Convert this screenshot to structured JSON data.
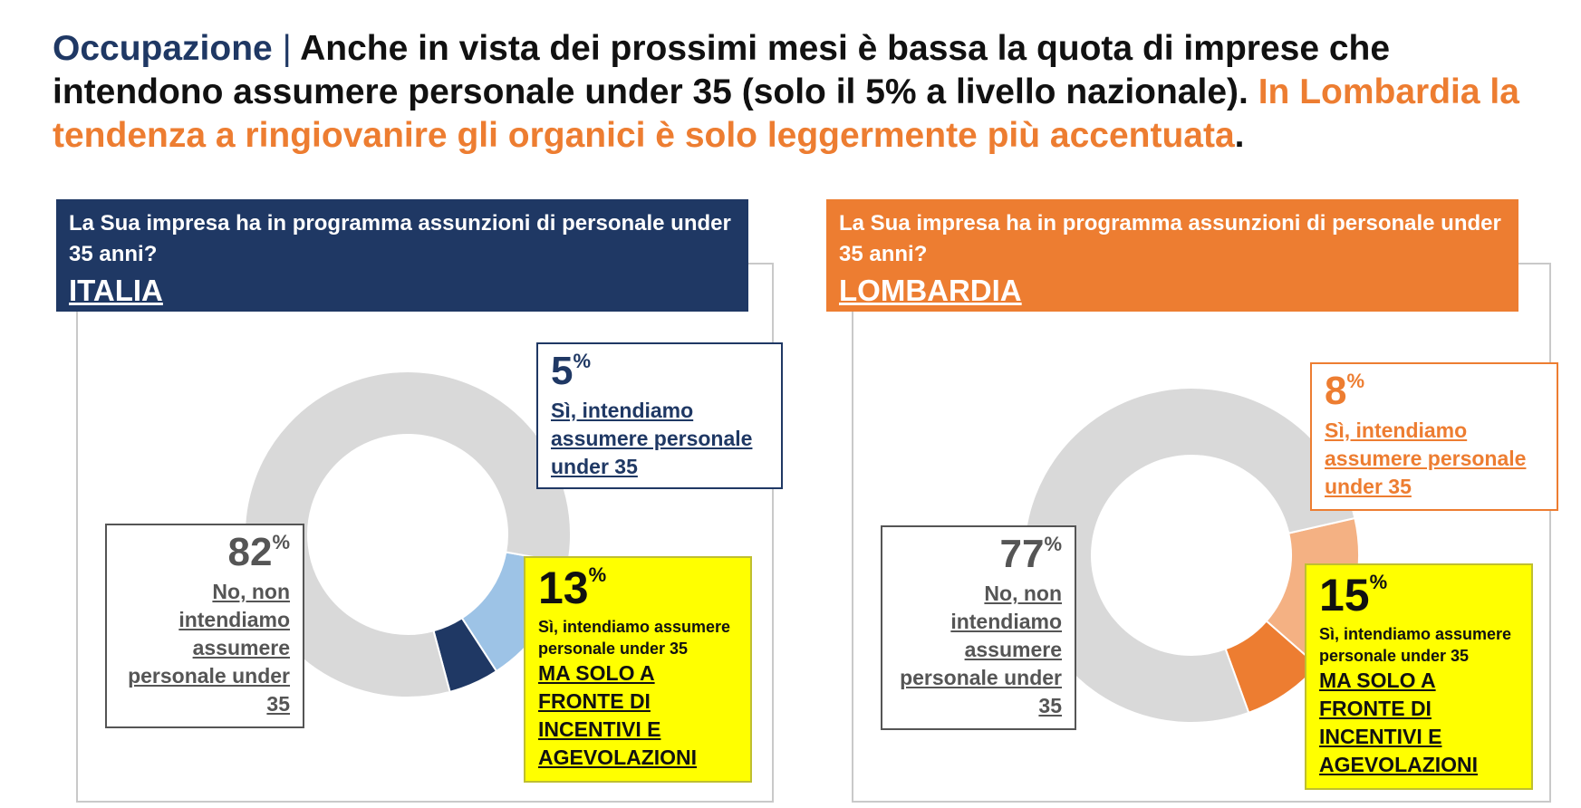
{
  "title": {
    "section": "Occupazione",
    "separator": "|",
    "main": "Anche in vista dei prossimi mesi è bassa la quota di imprese che intendono assumere personale under 35 (solo il 5% a livello nazionale).",
    "highlight": "In Lombardia la tendenza a ringiovanire gli organici è solo leggermente più accentuata",
    "end": "."
  },
  "colors": {
    "navy": "#1F3864",
    "orange": "#ED7D31",
    "light_blue": "#9DC3E6",
    "light_orange": "#F4B183",
    "grey": "#D9D9D9",
    "yellow": "#FFFF00"
  },
  "panels": {
    "italia": {
      "question": "La Sua impresa ha in programma assunzioni di personale under 35 anni?",
      "region": "ITALIA",
      "no_pct": "82",
      "no_label": "No, non intendiamo assumere personale under 35",
      "yes_pct": "5",
      "yes_label": "Sì, intendiamo assumere personale under 35",
      "inc_pct": "13",
      "inc_label_small": "Sì, intendiamo assumere personale under 35",
      "inc_label_strong": "MA SOLO A FRONTE DI INCENTIVI E AGEVOLAZIONI",
      "pct_symbol": "%"
    },
    "lombardia": {
      "question": "La Sua impresa ha in programma assunzioni di personale under 35 anni?",
      "region": "LOMBARDIA",
      "no_pct": "77",
      "no_label": "No, non intendiamo assumere personale under 35",
      "yes_pct": "8",
      "yes_label": "Sì, intendiamo assumere personale under 35",
      "inc_pct": "15",
      "inc_label_small": "Sì, intendiamo assumere personale under 35",
      "inc_label_strong": "MA SOLO A FRONTE DI INCENTIVI E AGEVOLAZIONI",
      "pct_symbol": "%"
    }
  },
  "chart_data": [
    {
      "type": "pie",
      "title": "ITALIA",
      "categories": [
        "Sì, intendiamo assumere personale under 35",
        "Sì, intendiamo assumere personale under 35 MA SOLO A FRONTE DI INCENTIVI E AGEVOLAZIONI",
        "No, non intendiamo assumere personale under 35"
      ],
      "values": [
        5,
        13,
        82
      ],
      "colors": [
        "#1F3864",
        "#9DC3E6",
        "#D9D9D9"
      ]
    },
    {
      "type": "pie",
      "title": "LOMBARDIA",
      "categories": [
        "Sì, intendiamo assumere personale under 35",
        "Sì, intendiamo assumere personale under 35 MA SOLO A FRONTE DI INCENTIVI E AGEVOLAZIONI",
        "No, non intendiamo assumere personale under 35"
      ],
      "values": [
        8,
        15,
        77
      ],
      "colors": [
        "#ED7D31",
        "#F4B183",
        "#D9D9D9"
      ]
    }
  ]
}
